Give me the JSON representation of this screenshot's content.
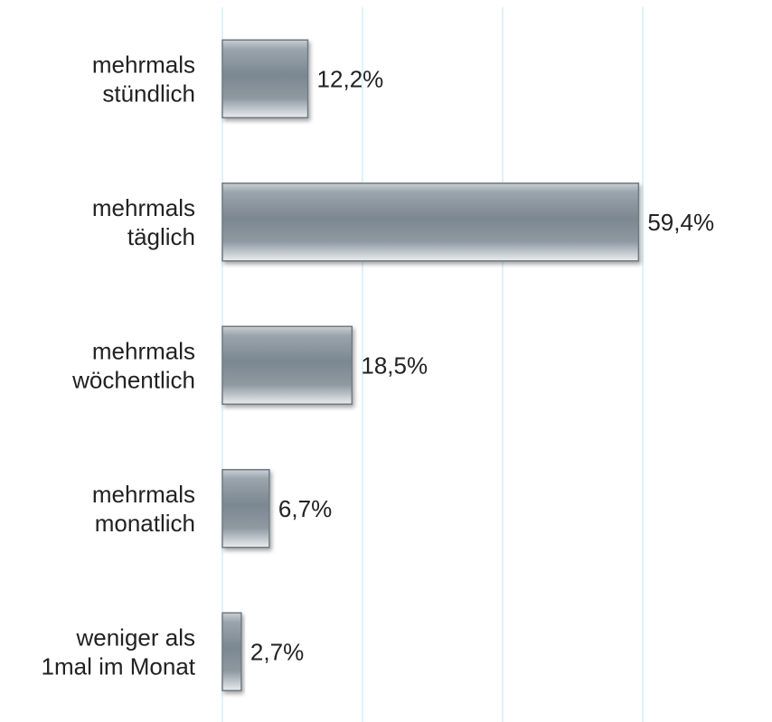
{
  "chart_data": {
    "type": "bar",
    "orientation": "horizontal",
    "categories": [
      [
        "mehrmals",
        "stündlich"
      ],
      [
        "mehrmals",
        "täglich"
      ],
      [
        "mehrmals",
        "wöchentlich"
      ],
      [
        "mehrmals",
        "monatlich"
      ],
      [
        "weniger als",
        "1mal im Monat"
      ]
    ],
    "values": [
      12.2,
      59.4,
      18.5,
      6.7,
      2.7
    ],
    "value_labels": [
      "12,2%",
      "59,4%",
      "18,5%",
      "6,7%",
      "2,7%"
    ],
    "xlim": [
      0,
      60
    ],
    "gridlines": [
      0,
      20,
      40,
      60
    ],
    "grid": true,
    "legend": "none",
    "colors": {
      "bar_dark": "#7b8791",
      "bar_light": "#e9ecee",
      "bar_edge": "#6f7a83",
      "grid": "#c6eef3"
    }
  }
}
